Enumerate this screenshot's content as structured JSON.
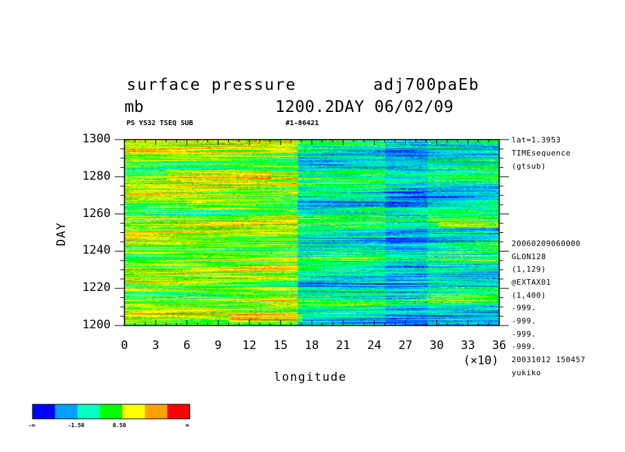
{
  "header": {
    "title": "surface pressure",
    "experiment": "adj700paEb",
    "unit": "mb",
    "day_label": "1200.2DAY 06/02/09",
    "subtitle_left": "PS YS32 TSEQ SUB",
    "subtitle_right": "#1-86421"
  },
  "info_lines": [
    "lat=1.3953",
    "TIMEsequence",
    "(gtsub)",
    "20060209060000",
    "GLON128",
    "(1,129)",
    "@EXTAX01",
    "(1,400)",
    "-999.",
    "-999.",
    "-999.",
    "-999.",
    "20031012 150457",
    "yukiko"
  ],
  "colors": {
    "palette": [
      "#0000ff",
      "#00a0ff",
      "#00ffc0",
      "#00ff00",
      "#ffff00",
      "#ffa000",
      "#ff0000"
    ],
    "frame": "#000000"
  },
  "chart_data": {
    "type": "heatmap",
    "title": "surface pressure",
    "xlabel": "longitude",
    "ylabel": "DAY",
    "x_scale_note": "(×10)",
    "xlim": [
      0,
      36
    ],
    "ylim": [
      1200,
      1300
    ],
    "x_ticks": [
      "0",
      "3",
      "6",
      "9",
      "12",
      "15",
      "18",
      "21",
      "24",
      "27",
      "30",
      "33",
      "36"
    ],
    "y_ticks": [
      "1200",
      "1220",
      "1240",
      "1260",
      "1280",
      "1300"
    ],
    "colorbar": {
      "labels": [
        "-∞",
        "-1.50",
        "0.50",
        "∞"
      ],
      "levels": 7
    },
    "features": [
      {
        "x": [
          0,
          16.5
        ],
        "y": [
          1200,
          1300
        ],
        "character": "mostly green/yellow/orange, positive anomalies"
      },
      {
        "x": [
          16.5,
          36
        ],
        "y": [
          1200,
          1300
        ],
        "character": "more blue/cyan, negative anomalies"
      },
      {
        "x": [
          10,
          18
        ],
        "y": [
          1202,
          1206
        ],
        "character": "red streak"
      },
      {
        "x": [
          35,
          36
        ],
        "y": [
          1253,
          1256
        ],
        "character": "red streak"
      }
    ]
  }
}
